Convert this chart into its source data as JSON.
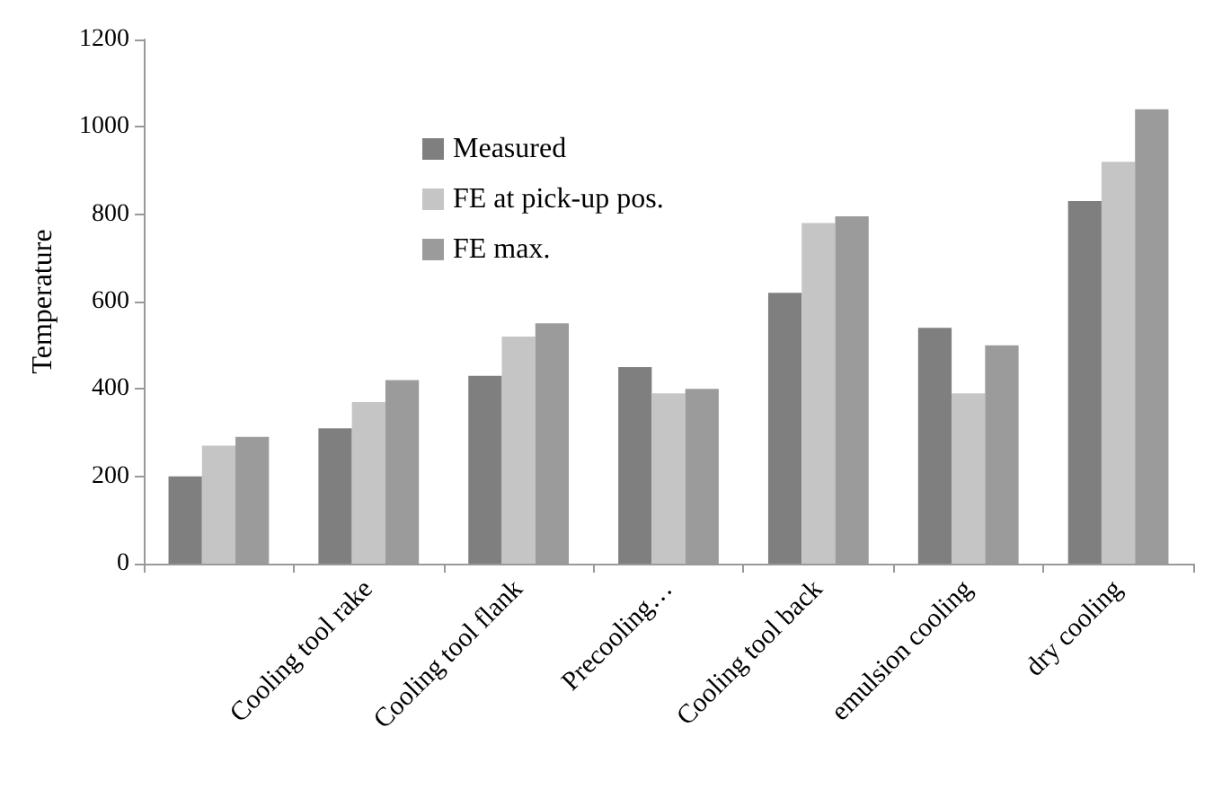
{
  "chart_data": {
    "type": "bar",
    "ylabel": "Temperature",
    "categories": [
      null,
      "Cooling tool rake",
      "Cooling tool flank",
      "Precooling…",
      "Cooling tool back",
      "emulsion cooling",
      "dry cooling"
    ],
    "series": [
      {
        "name": "Measured",
        "color": "#7f7f7f",
        "values": [
          200,
          310,
          430,
          450,
          620,
          540,
          830
        ]
      },
      {
        "name": "FE at pick-up pos.",
        "color": "#c4c5c4",
        "values": [
          270,
          370,
          520,
          390,
          780,
          390,
          920
        ]
      },
      {
        "name": "FE max.",
        "color": "#9a9b9a",
        "values": [
          290,
          420,
          550,
          400,
          795,
          500,
          1040
        ]
      }
    ],
    "ylim": [
      0,
      1200
    ],
    "yticks": [
      0,
      200,
      400,
      600,
      800,
      1000,
      1200
    ],
    "grid": false,
    "legend": "top left"
  }
}
